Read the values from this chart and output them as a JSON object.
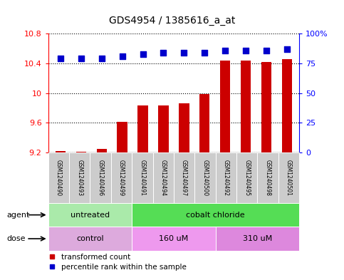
{
  "title": "GDS4954 / 1385616_a_at",
  "samples": [
    "GSM1240490",
    "GSM1240493",
    "GSM1240496",
    "GSM1240499",
    "GSM1240491",
    "GSM1240494",
    "GSM1240497",
    "GSM1240500",
    "GSM1240492",
    "GSM1240495",
    "GSM1240498",
    "GSM1240501"
  ],
  "bar_values": [
    9.22,
    9.21,
    9.25,
    9.61,
    9.83,
    9.83,
    9.86,
    9.99,
    10.44,
    10.44,
    10.42,
    10.46
  ],
  "dot_values": [
    79,
    79,
    79,
    81,
    83,
    84,
    84,
    84,
    86,
    86,
    86,
    87
  ],
  "ylim_left": [
    9.2,
    10.8
  ],
  "ylim_right": [
    0,
    100
  ],
  "yticks_left": [
    9.2,
    9.6,
    10.0,
    10.4,
    10.8
  ],
  "yticks_right": [
    0,
    25,
    50,
    75,
    100
  ],
  "yticklabels_left": [
    "9.2",
    "9.6",
    "10",
    "10.4",
    "10.8"
  ],
  "yticklabels_right": [
    "0",
    "25",
    "50",
    "75",
    "100%"
  ],
  "bar_color": "#cc0000",
  "dot_color": "#0000cc",
  "agent_groups": [
    {
      "label": "untreated",
      "start": 0,
      "end": 3,
      "color": "#aaeaaa"
    },
    {
      "label": "cobalt chloride",
      "start": 4,
      "end": 11,
      "color": "#55dd55"
    }
  ],
  "dose_groups": [
    {
      "label": "control",
      "start": 0,
      "end": 3,
      "color": "#ddaadd"
    },
    {
      "label": "160 uM",
      "start": 4,
      "end": 7,
      "color": "#ee99ee"
    },
    {
      "label": "310 uM",
      "start": 8,
      "end": 11,
      "color": "#dd88dd"
    }
  ],
  "legend_bar_label": "transformed count",
  "legend_dot_label": "percentile rank within the sample",
  "agent_label": "agent",
  "dose_label": "dose",
  "bar_width": 0.5,
  "dot_size": 40,
  "sample_box_color": "#cccccc",
  "fig_width": 4.83,
  "fig_height": 3.93,
  "fig_dpi": 100
}
